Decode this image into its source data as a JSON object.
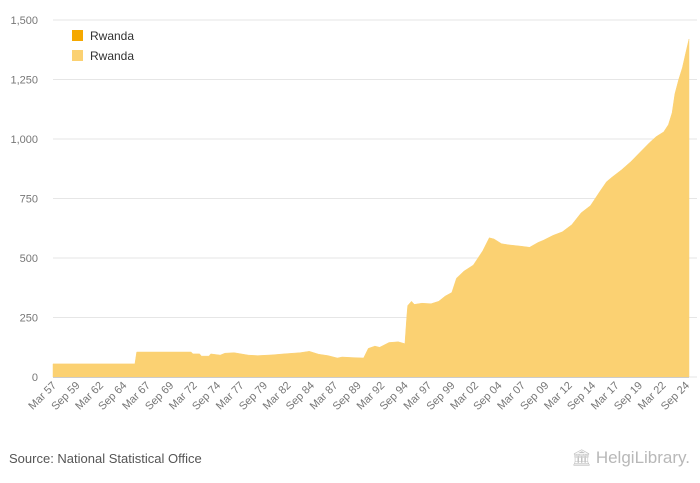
{
  "source": {
    "text": "Source: National Statistical Office"
  },
  "branding": {
    "name": "HelgiLibrary."
  },
  "colors": {
    "dark_series": "#f5a800",
    "light_series": "#fbd172",
    "grid": "#e6e6e6",
    "axis_text": "#777777"
  },
  "chart_data": {
    "type": "area",
    "title": "",
    "xlabel": "",
    "ylabel": "",
    "ylim": [
      0,
      1500
    ],
    "y_ticks": [
      0,
      250,
      500,
      750,
      1000,
      1250,
      1500
    ],
    "y_tick_labels": [
      "0",
      "250",
      "500",
      "750",
      "1,000",
      "1,250",
      "1,500"
    ],
    "x_range": [
      1957.17,
      2025.0
    ],
    "x_tick_positions": [
      1957.17,
      1959.67,
      1962.17,
      1964.67,
      1967.17,
      1969.67,
      1972.17,
      1974.67,
      1977.17,
      1979.67,
      1982.17,
      1984.67,
      1987.17,
      1989.67,
      1992.17,
      1994.67,
      1997.17,
      1999.67,
      2002.17,
      2004.67,
      2007.17,
      2009.67,
      2012.17,
      2014.67,
      2017.17,
      2019.67,
      2022.17,
      2024.67
    ],
    "x_tick_labels": [
      "Mar 57",
      "Sep 59",
      "Mar 62",
      "Sep 64",
      "Mar 67",
      "Sep 69",
      "Mar 72",
      "Sep 74",
      "Mar 77",
      "Sep 79",
      "Mar 82",
      "Sep 84",
      "Mar 87",
      "Sep 89",
      "Mar 92",
      "Sep 94",
      "Mar 97",
      "Sep 99",
      "Mar 02",
      "Sep 04",
      "Mar 07",
      "Sep 09",
      "Mar 12",
      "Sep 14",
      "Mar 17",
      "Sep 19",
      "Mar 22",
      "Sep 24"
    ],
    "legend": {
      "position": "top-left",
      "entries": [
        "Rwanda",
        "Rwanda"
      ]
    },
    "series": [
      {
        "name": "Rwanda",
        "style": "area",
        "x": [
          1957.17,
          1965.9,
          1966.1,
          1971.9,
          1972.1,
          1972.8,
          1973.0,
          1973.8,
          1974.0,
          1975.0,
          1975.5,
          1976.5,
          1978.0,
          1979.0,
          1980.5,
          1982.0,
          1983.5,
          1984.5,
          1985.5,
          1986.5,
          1987.5,
          1988.0,
          1989.0,
          1990.3,
          1990.8,
          1991.5,
          1992.0,
          1993.0,
          1994.0,
          1994.7,
          1994.9,
          1995.0,
          1995.4,
          1995.7,
          1996.5,
          1997.5,
          1998.3,
          1999.0,
          1999.7,
          2000.2,
          2001.0,
          2002.0,
          2003.0,
          2003.7,
          2004.2,
          2005.0,
          2005.8,
          2007.0,
          2008.0,
          2008.9,
          2009.5,
          2010.5,
          2011.5,
          2012.5,
          2013.5,
          2014.5,
          2015.5,
          2016.2,
          2016.8,
          2017.8,
          2018.8,
          2019.8,
          2020.8,
          2021.5,
          2022.3,
          2022.8,
          2023.2,
          2023.5,
          2023.9,
          2024.3,
          2024.7,
          2025.0
        ],
        "values": [
          55,
          55,
          105,
          105,
          97,
          97,
          88,
          88,
          97,
          92,
          100,
          102,
          92,
          90,
          93,
          98,
          102,
          108,
          96,
          90,
          80,
          84,
          82,
          80,
          120,
          130,
          125,
          145,
          148,
          140,
          255,
          300,
          318,
          305,
          310,
          308,
          318,
          340,
          355,
          415,
          445,
          470,
          530,
          585,
          580,
          560,
          555,
          550,
          545,
          565,
          575,
          595,
          610,
          640,
          690,
          720,
          780,
          820,
          840,
          870,
          905,
          945,
          985,
          1010,
          1030,
          1060,
          1110,
          1190,
          1250,
          1300,
          1370,
          1420
        ]
      }
    ]
  }
}
